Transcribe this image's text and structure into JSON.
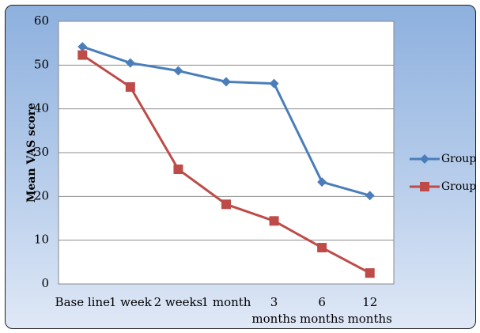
{
  "chart_data": {
    "type": "line",
    "title": "",
    "xlabel": "",
    "ylabel": "Mean VAS score",
    "categories": [
      [
        "Base line"
      ],
      [
        "1 week"
      ],
      [
        "2 weeks"
      ],
      [
        "1 month"
      ],
      [
        "3",
        "months"
      ],
      [
        "6",
        "months"
      ],
      [
        "12",
        "months"
      ]
    ],
    "ylim": [
      0,
      60
    ],
    "yticks": [
      0,
      10,
      20,
      30,
      40,
      50,
      60
    ],
    "grid": true,
    "legend_position": "right",
    "series": [
      {
        "name": "Group I",
        "color": "#4a7ebb",
        "marker": "diamond",
        "values": [
          54.2,
          50.5,
          48.7,
          46.2,
          45.8,
          23.3,
          20.2
        ]
      },
      {
        "name": "Group II",
        "color": "#be4b48",
        "marker": "square",
        "values": [
          52.3,
          45,
          26.2,
          18.2,
          14.4,
          8.3,
          2.5
        ]
      }
    ]
  }
}
